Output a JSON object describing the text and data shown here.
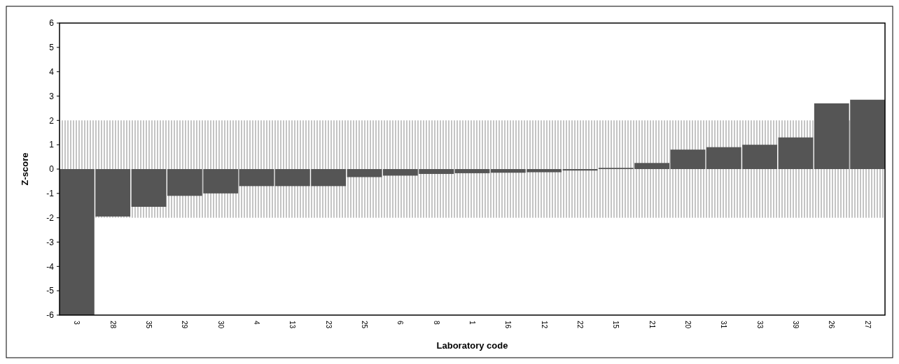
{
  "chart_data": {
    "type": "bar",
    "xlabel": "Laboratory code",
    "ylabel": "Z-score",
    "categories": [
      "3",
      "28",
      "35",
      "29",
      "30",
      "4",
      "13",
      "23",
      "25",
      "6",
      "8",
      "1",
      "16",
      "12",
      "22",
      "15",
      "21",
      "20",
      "31",
      "33",
      "39",
      "26",
      "27"
    ],
    "values": [
      -6,
      -1.95,
      -1.55,
      -1.1,
      -1.0,
      -0.7,
      -0.7,
      -0.7,
      -0.33,
      -0.27,
      -0.2,
      -0.17,
      -0.15,
      -0.13,
      -0.06,
      0.05,
      0.25,
      0.8,
      0.9,
      1.0,
      1.3,
      2.7,
      2.85
    ],
    "color": "#555555",
    "ylim": [
      -6,
      6
    ],
    "yticks": [
      -6,
      -5,
      -4,
      -3,
      -2,
      -1,
      0,
      1,
      2,
      3,
      4,
      5,
      6
    ],
    "bands": [
      {
        "axis": "y",
        "from": -2,
        "to": 2,
        "color": "#c4c4c4"
      }
    ]
  }
}
